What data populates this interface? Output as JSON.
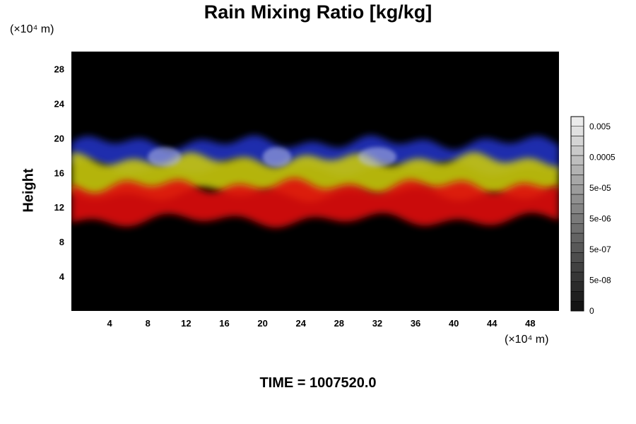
{
  "chart_data": {
    "type": "heatmap",
    "title": "Rain Mixing Ratio [kg/kg]",
    "xlabel": "",
    "ylabel": "Height",
    "x_unit": "(×10⁴ m)",
    "y_unit": "(×10⁴ m)",
    "xlim": [
      0,
      51
    ],
    "ylim": [
      0,
      30
    ],
    "x_ticks": [
      4,
      8,
      12,
      16,
      20,
      24,
      28,
      32,
      36,
      40,
      44,
      48
    ],
    "y_ticks": [
      4,
      8,
      12,
      16,
      20,
      24,
      28
    ],
    "colorbar": {
      "tick_labels": [
        "0.005",
        "0.0005",
        "5e-05",
        "5e-06",
        "5e-07",
        "5e-08",
        "0"
      ],
      "n_levels": 20
    },
    "layers": [
      {
        "color": "#2030c0",
        "y_bottom": 16.5,
        "y_top": 19.5
      },
      {
        "color": "#c8c810",
        "y_bottom": 13.5,
        "y_top": 17.5
      },
      {
        "color": "#e01010",
        "y_bottom": 10.5,
        "y_top": 14.5
      }
    ],
    "background": "#000000",
    "annotation": "TIME = 1007520.0"
  }
}
